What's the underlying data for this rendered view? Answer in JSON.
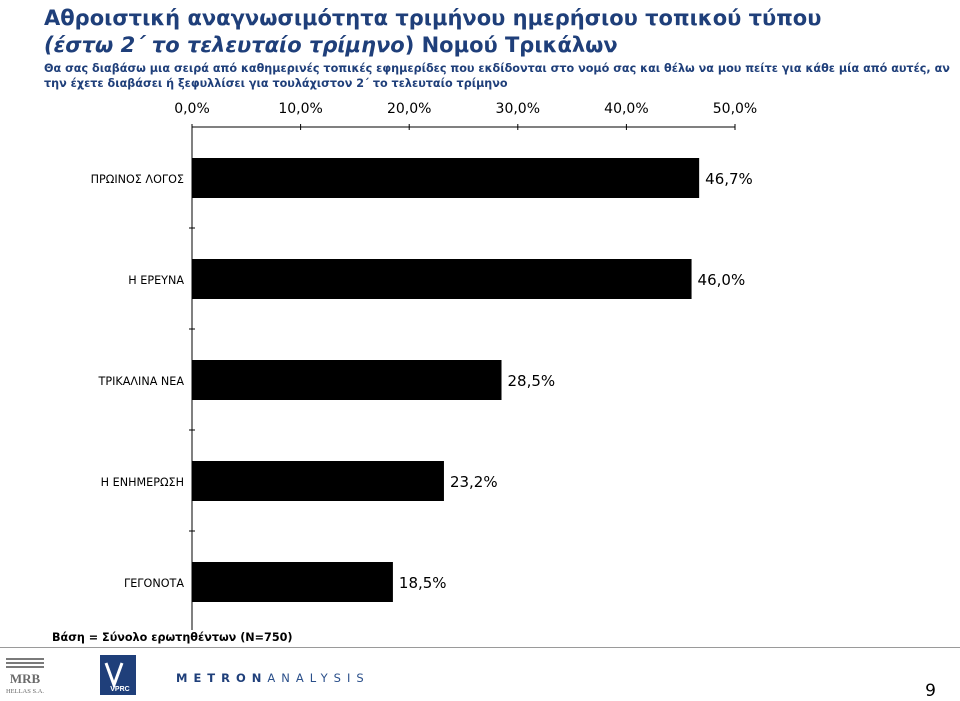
{
  "title": {
    "line1": "Αθροιστική αναγνωσιμότητα τριμήνου ημερήσιου τοπικού τύπου",
    "line2_italic": "(έστω 2΄ το τελευταίο τρίμηνο",
    "line2_rest": ") Νομού Τρικάλων"
  },
  "question": "Θα σας διαβάσω μια σειρά από καθημερινές τοπικές εφημερίδες που εκδίδονται στο νομό σας και θέλω να μου πείτε για κάθε μία από αυτές, αν την έχετε διαβάσει ή ξεφυλλίσει για τουλάχιστον 2΄ το τελευταίο τρίμηνο",
  "chart_data": {
    "type": "bar",
    "orientation": "horizontal",
    "categories": [
      "ΠΡΩΙΝΟΣ ΛΟΓΟΣ",
      "Η ΕΡΕΥΝΑ",
      "ΤΡΙΚΑΛΙΝΑ ΝΕΑ",
      "Η ΕΝΗΜΕΡΩΣΗ",
      "ΓΕΓΟΝΟΤΑ"
    ],
    "values": [
      46.7,
      46.0,
      28.5,
      23.2,
      18.5
    ],
    "value_labels": [
      "46,7%",
      "46,0%",
      "28,5%",
      "23,2%",
      "18,5%"
    ],
    "xlim": [
      0,
      50
    ],
    "ticks": [
      0,
      10,
      20,
      30,
      40,
      50
    ],
    "tick_labels": [
      "0,0%",
      "10,0%",
      "20,0%",
      "30,0%",
      "40,0%",
      "50,0%"
    ],
    "axis_position": "top",
    "grid": false,
    "bar_color": "#000000"
  },
  "base_note": "Βάση = Σύνολο ερωτηθέντων (Ν=750)",
  "footer": {
    "mrb_logo_name": "MRB",
    "mrb_logo_sub": "HELLAS S.A.",
    "vprc_logo": "VPRC",
    "metron_bold": "METRON",
    "metron_light": "ANALYSIS",
    "page_number": "9"
  }
}
